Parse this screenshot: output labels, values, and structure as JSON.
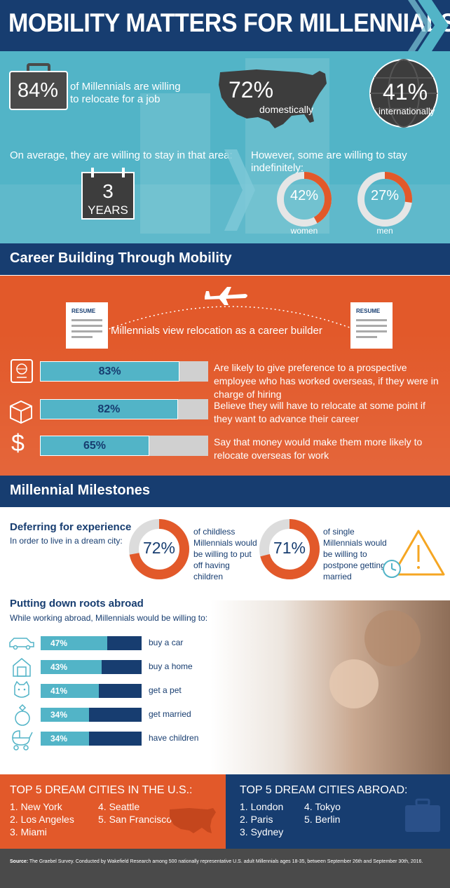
{
  "header": {
    "title": "MOBILITY MATTERS FOR MILLENNIALS"
  },
  "relocation": {
    "pct": "84%",
    "text": "of Millennials are willing to relocate for a job",
    "domestic_pct": "72%",
    "domestic_label": "domestically",
    "intl_pct": "41%",
    "intl_label": "internationally"
  },
  "stay": {
    "avg_text": "On average, they are willing to stay in that area:",
    "years_num": "3",
    "years_label": "YEARS",
    "indef_text": "However, some are willing to stay indefinitely:",
    "women": {
      "pct": "42%",
      "label": "women",
      "value": 0.42
    },
    "men": {
      "pct": "27%",
      "label": "men",
      "value": 0.27
    }
  },
  "career": {
    "title": "Career Building Through Mobility",
    "resume_label": "RESUME",
    "tagline": "Millennials view relocation as a career builder",
    "rows": [
      {
        "pct": "83%",
        "value": 0.83,
        "icon": "passport-icon",
        "text": "Are likely to give preference to a prospective employee who has worked overseas, if they were in charge of hiring"
      },
      {
        "pct": "82%",
        "value": 0.82,
        "icon": "box-icon",
        "text": "Believe they will have to relocate at some point if they want to advance their career"
      },
      {
        "pct": "65%",
        "value": 0.65,
        "icon": "dollar-icon",
        "text": "Say that money would make them more likely to relocate overseas for work"
      }
    ]
  },
  "milestones": {
    "title": "Millennial Milestones",
    "defer_title": "Deferring for experience",
    "defer_sub": "In order to live in a dream city:",
    "children": {
      "pct": "72%",
      "value": 0.72,
      "text": "of childless Millennials would be willing to put off having children"
    },
    "married": {
      "pct": "71%",
      "value": 0.71,
      "text": "of single Millennials would be willing to postpone getting married"
    },
    "roots_title": "Putting down roots abroad",
    "roots_sub": "While working abroad, Millennials would be willing to:",
    "roots": [
      {
        "pct": "47%",
        "value": 0.47,
        "label": "buy a car",
        "icon": "car-icon"
      },
      {
        "pct": "43%",
        "value": 0.43,
        "label": "buy a home",
        "icon": "house-icon"
      },
      {
        "pct": "41%",
        "value": 0.41,
        "label": "get a pet",
        "icon": "cat-icon"
      },
      {
        "pct": "34%",
        "value": 0.34,
        "label": "get married",
        "icon": "ring-icon"
      },
      {
        "pct": "34%",
        "value": 0.34,
        "label": "have children",
        "icon": "stroller-icon"
      }
    ]
  },
  "cities": {
    "us_title": "TOP 5 DREAM CITIES IN THE U.S.:",
    "us": [
      "1. New York",
      "2. Los Angeles",
      "3. Miami",
      "4. Seattle",
      "5. San Francisco"
    ],
    "abroad_title": "TOP 5 DREAM CITIES ABROAD:",
    "abroad": [
      "1. London",
      "2. Paris",
      "3. Sydney",
      "4. Tokyo",
      "5. Berlin"
    ]
  },
  "source": {
    "label": "Source:",
    "text": "The Graebel Survey. Conducted by Wakefield Research among 500 nationally representative U.S. adult Millennials ages 18-35, between September 26th and September 30th, 2016."
  },
  "colors": {
    "navy": "#173d70",
    "teal": "#52b4c7",
    "orange": "#e2592a",
    "grey": "#4a4a4a"
  }
}
